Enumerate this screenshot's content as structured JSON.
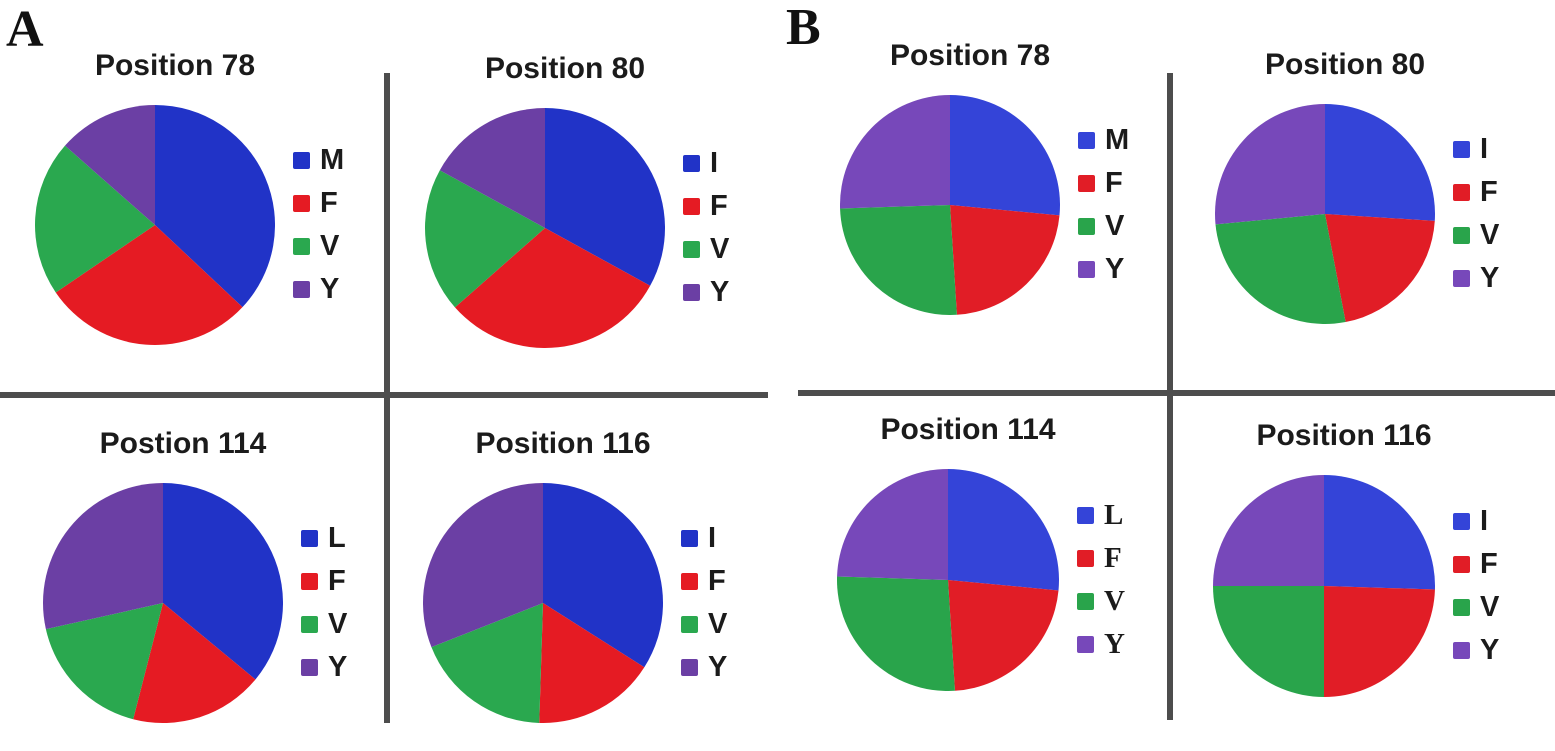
{
  "figure": {
    "panels": [
      {
        "label": "A"
      },
      {
        "label": "B"
      }
    ],
    "divider_color": "#4d4d4d",
    "background": "#ffffff",
    "palette": {
      "panel_a": {
        "blue": "#2133c7",
        "red": "#e51b23",
        "green": "#2aa84f",
        "purple": "#6b3fa4"
      },
      "panel_b": {
        "blue": "#3444d8",
        "red": "#e11d26",
        "green": "#29a44b",
        "purple": "#7748ba"
      }
    }
  },
  "chart_data": [
    {
      "type": "pie",
      "panel": "A",
      "title": "Position 78",
      "legend_position": "right",
      "start_angle": "12-oclock",
      "direction": "clockwise",
      "slices": [
        {
          "label": "M",
          "percent": 37.0,
          "color": "#2133c7"
        },
        {
          "label": "F",
          "percent": 28.5,
          "color": "#e51b23"
        },
        {
          "label": "V",
          "percent": 21.0,
          "color": "#2aa84f"
        },
        {
          "label": "Y",
          "percent": 13.5,
          "color": "#6b3fa4"
        }
      ]
    },
    {
      "type": "pie",
      "panel": "A",
      "title": "Position 80",
      "legend_position": "right",
      "start_angle": "12-oclock",
      "direction": "clockwise",
      "slices": [
        {
          "label": "I",
          "percent": 33.0,
          "color": "#2133c7"
        },
        {
          "label": "F",
          "percent": 30.5,
          "color": "#e51b23"
        },
        {
          "label": "V",
          "percent": 19.5,
          "color": "#2aa84f"
        },
        {
          "label": "Y",
          "percent": 17.0,
          "color": "#6b3fa4"
        }
      ]
    },
    {
      "type": "pie",
      "panel": "A",
      "title": "Postion 114",
      "legend_position": "right",
      "start_angle": "12-oclock",
      "direction": "clockwise",
      "slices": [
        {
          "label": "L",
          "percent": 36.0,
          "color": "#2133c7"
        },
        {
          "label": "F",
          "percent": 18.0,
          "color": "#e51b23"
        },
        {
          "label": "V",
          "percent": 17.5,
          "color": "#2aa84f"
        },
        {
          "label": "Y",
          "percent": 28.5,
          "color": "#6b3fa4"
        }
      ]
    },
    {
      "type": "pie",
      "panel": "A",
      "title": "Position 116",
      "legend_position": "right",
      "start_angle": "12-oclock",
      "direction": "clockwise",
      "slices": [
        {
          "label": "I",
          "percent": 34.0,
          "color": "#2133c7"
        },
        {
          "label": "F",
          "percent": 16.5,
          "color": "#e51b23"
        },
        {
          "label": "V",
          "percent": 18.5,
          "color": "#2aa84f"
        },
        {
          "label": "Y",
          "percent": 31.0,
          "color": "#6b3fa4"
        }
      ]
    },
    {
      "type": "pie",
      "panel": "B",
      "title": "Position 78",
      "legend_position": "right",
      "start_angle": "12-oclock",
      "direction": "clockwise",
      "slices": [
        {
          "label": "M",
          "percent": 26.5,
          "color": "#3444d8"
        },
        {
          "label": "F",
          "percent": 22.5,
          "color": "#e11d26"
        },
        {
          "label": "V",
          "percent": 25.5,
          "color": "#29a44b"
        },
        {
          "label": "Y",
          "percent": 25.5,
          "color": "#7748ba"
        }
      ]
    },
    {
      "type": "pie",
      "panel": "B",
      "title": "Position 80",
      "legend_position": "right",
      "start_angle": "12-oclock",
      "direction": "clockwise",
      "slices": [
        {
          "label": "I",
          "percent": 26.0,
          "color": "#3444d8"
        },
        {
          "label": "F",
          "percent": 21.0,
          "color": "#e11d26"
        },
        {
          "label": "V",
          "percent": 26.5,
          "color": "#29a44b"
        },
        {
          "label": "Y",
          "percent": 26.5,
          "color": "#7748ba"
        }
      ]
    },
    {
      "type": "pie",
      "panel": "B",
      "title": "Position 114",
      "legend_position": "right",
      "start_angle": "12-oclock",
      "direction": "clockwise",
      "slices": [
        {
          "label": "L",
          "percent": 26.5,
          "color": "#3444d8"
        },
        {
          "label": "F",
          "percent": 22.5,
          "color": "#e11d26"
        },
        {
          "label": "V",
          "percent": 26.5,
          "color": "#29a44b"
        },
        {
          "label": "Y",
          "percent": 24.5,
          "color": "#7748ba"
        }
      ]
    },
    {
      "type": "pie",
      "panel": "B",
      "title": "Position 116",
      "legend_position": "right",
      "start_angle": "12-oclock",
      "direction": "clockwise",
      "slices": [
        {
          "label": "I",
          "percent": 25.5,
          "color": "#3444d8"
        },
        {
          "label": "F",
          "percent": 24.5,
          "color": "#e11d26"
        },
        {
          "label": "V",
          "percent": 25.0,
          "color": "#29a44b"
        },
        {
          "label": "Y",
          "percent": 25.0,
          "color": "#7748ba"
        }
      ]
    }
  ]
}
